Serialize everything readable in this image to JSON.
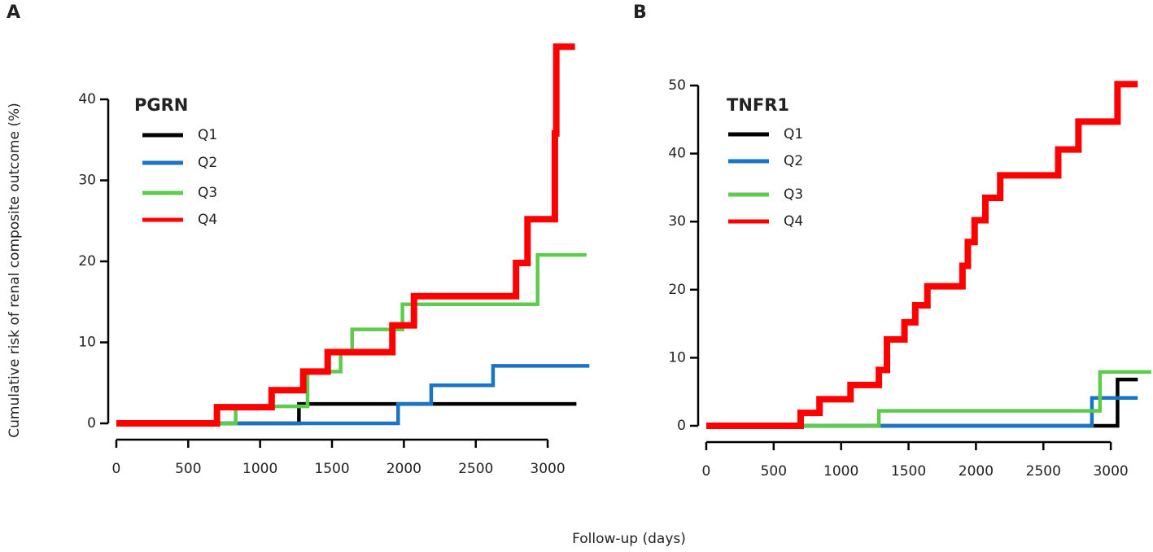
{
  "xlabel": "Follow-up (days)",
  "ylabel": "Cumulative risk of renal composite outcome (%)",
  "chart_data": [
    {
      "type": "step",
      "label": "A",
      "legend_title": "PGRN",
      "xlim": [
        -100,
        3320
      ],
      "ylim": [
        -2.5,
        47.5
      ],
      "xticks": [
        0,
        500,
        1000,
        1500,
        2000,
        2500,
        3000
      ],
      "yticks": [
        0,
        10,
        20,
        30,
        40
      ],
      "series": [
        {
          "name": "Q1",
          "color": "#000000",
          "x": [
            0,
            1270,
            3200
          ],
          "values": [
            0,
            2.4,
            2.4
          ]
        },
        {
          "name": "Q2",
          "color": "#1874c4",
          "x": [
            0,
            1960,
            2190,
            2620,
            3290
          ],
          "values": [
            0,
            2.4,
            4.7,
            7.1,
            7.1
          ]
        },
        {
          "name": "Q3",
          "color": "#5dcb4e",
          "x": [
            0,
            830,
            1330,
            1560,
            1640,
            1990,
            2930,
            3270
          ],
          "values": [
            0,
            2.1,
            6.4,
            8.8,
            11.6,
            14.7,
            20.8,
            20.8
          ]
        },
        {
          "name": "Q4",
          "color": "#ff0000",
          "x": [
            0,
            700,
            1080,
            1300,
            1470,
            1920,
            2070,
            2780,
            2860,
            3050,
            3060,
            3190
          ],
          "values": [
            0,
            2.0,
            4.1,
            6.4,
            8.8,
            12.1,
            15.7,
            19.8,
            25.2,
            35.8,
            46.5,
            46.5
          ]
        }
      ]
    },
    {
      "type": "step",
      "label": "B",
      "legend_title": "TNFR1",
      "xlim": [
        -100,
        3310
      ],
      "ylim": [
        -2.6,
        51.5
      ],
      "xticks": [
        0,
        500,
        1000,
        1500,
        2000,
        2500,
        3000
      ],
      "yticks": [
        0,
        10,
        20,
        30,
        40,
        50
      ],
      "series": [
        {
          "name": "Q1",
          "color": "#000000",
          "x": [
            0,
            3050,
            3200
          ],
          "values": [
            0,
            6.8,
            6.8
          ]
        },
        {
          "name": "Q2",
          "color": "#1874c4",
          "x": [
            0,
            2860,
            3200
          ],
          "values": [
            0,
            4.1,
            4.1
          ]
        },
        {
          "name": "Q3",
          "color": "#5dcb4e",
          "x": [
            0,
            1280,
            2920,
            3300
          ],
          "values": [
            0,
            2.2,
            7.9,
            7.9
          ]
        },
        {
          "name": "Q4",
          "color": "#ff0000",
          "x": [
            0,
            700,
            840,
            1070,
            1280,
            1340,
            1470,
            1550,
            1640,
            1900,
            1940,
            1990,
            2070,
            2180,
            2610,
            2760,
            3050,
            3200
          ],
          "values": [
            0,
            1.9,
            3.9,
            6.0,
            8.2,
            12.7,
            15.2,
            17.7,
            20.5,
            23.5,
            27.0,
            30.2,
            33.5,
            36.8,
            40.6,
            44.7,
            50.2,
            50.2
          ]
        }
      ]
    }
  ]
}
